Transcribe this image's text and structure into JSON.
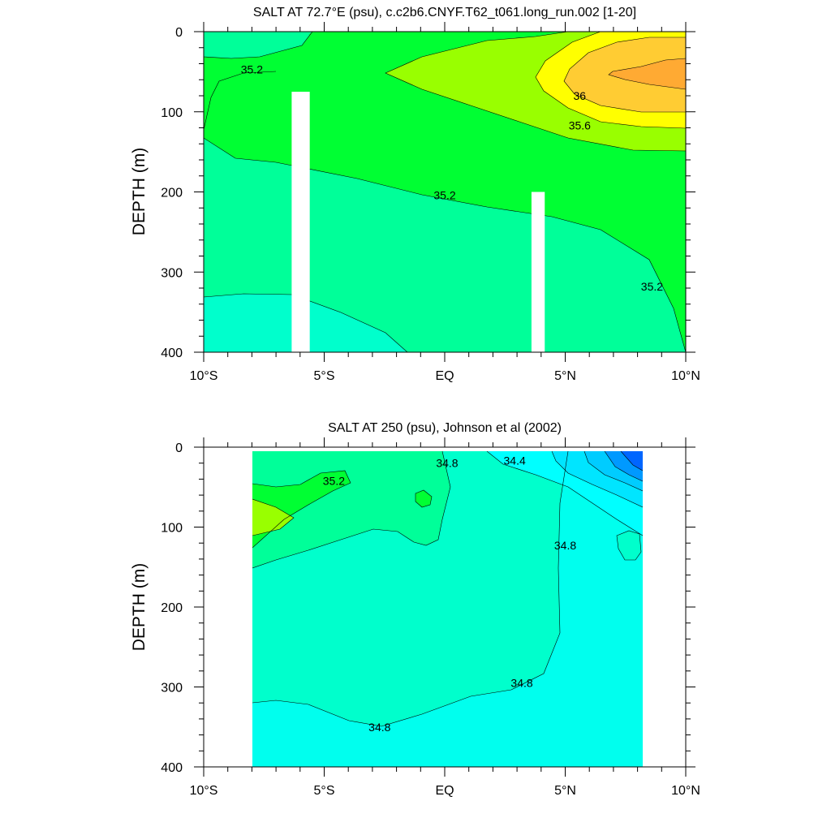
{
  "chart_data": [
    {
      "type": "contour",
      "title": "SALT AT  72.7°E (psu), c.c2b6.CNYF.T62_t061.long_run.002 [1-20]",
      "xlabel": "",
      "ylabel": "DEPTH (m)",
      "xlim": [
        -10,
        10
      ],
      "ylim": [
        400,
        0
      ],
      "x_ticks": [
        -10,
        -5,
        0,
        5,
        10
      ],
      "x_tick_labels": [
        "10°S",
        "5°S",
        "EQ",
        "5°N",
        "10°N"
      ],
      "y_ticks": [
        0,
        100,
        200,
        300,
        400
      ],
      "y_tick_labels": [
        "0",
        "100",
        "200",
        "300",
        "400"
      ],
      "contour_labels": [
        {
          "text": "35.2",
          "x": -8,
          "depth": 47
        },
        {
          "text": "36",
          "x": 5.6,
          "depth": 80
        },
        {
          "text": "35.6",
          "x": 5.6,
          "depth": 117
        },
        {
          "text": "35.2",
          "x": 0,
          "depth": 204
        },
        {
          "text": "35.2",
          "x": 8.6,
          "depth": 318
        }
      ],
      "colors": [
        "#00ffcc",
        "#00ff99",
        "#00ff33",
        "#99ff00",
        "#ffff00",
        "#ffcc33",
        "#ffaa33"
      ],
      "missing_columns": [
        {
          "x0": -6.35,
          "x1": -5.6,
          "depth_top": 75
        },
        {
          "x0": 3.6,
          "x1": 4.15,
          "depth_top": 200
        }
      ]
    },
    {
      "type": "contour",
      "title": "SALT AT 250 (psu), Johnson et al (2002)",
      "xlabel": "",
      "ylabel": "DEPTH (m)",
      "xlim": [
        -10,
        10
      ],
      "ylim": [
        400,
        0
      ],
      "data_xlim": [
        -8,
        8.2
      ],
      "x_ticks": [
        -10,
        -5,
        0,
        5,
        10
      ],
      "x_tick_labels": [
        "10°S",
        "5°S",
        "EQ",
        "5°N",
        "10°N"
      ],
      "y_ticks": [
        0,
        100,
        200,
        300,
        400
      ],
      "y_tick_labels": [
        "0",
        "100",
        "200",
        "300",
        "400"
      ],
      "contour_labels": [
        {
          "text": "35.2",
          "x": -4.6,
          "depth": 42
        },
        {
          "text": "34.8",
          "x": 0.1,
          "depth": 20
        },
        {
          "text": "34.4",
          "x": 2.9,
          "depth": 17
        },
        {
          "text": "34.8",
          "x": 5.0,
          "depth": 123
        },
        {
          "text": "34.8",
          "x": 3.2,
          "depth": 295
        },
        {
          "text": "34.8",
          "x": -2.7,
          "depth": 350
        }
      ],
      "colors": [
        "#00ffee",
        "#00ffcc",
        "#00ff99",
        "#00ff33",
        "#99ff00",
        "#00e5ff",
        "#00ccff",
        "#0099ff",
        "#0066ff"
      ]
    }
  ]
}
